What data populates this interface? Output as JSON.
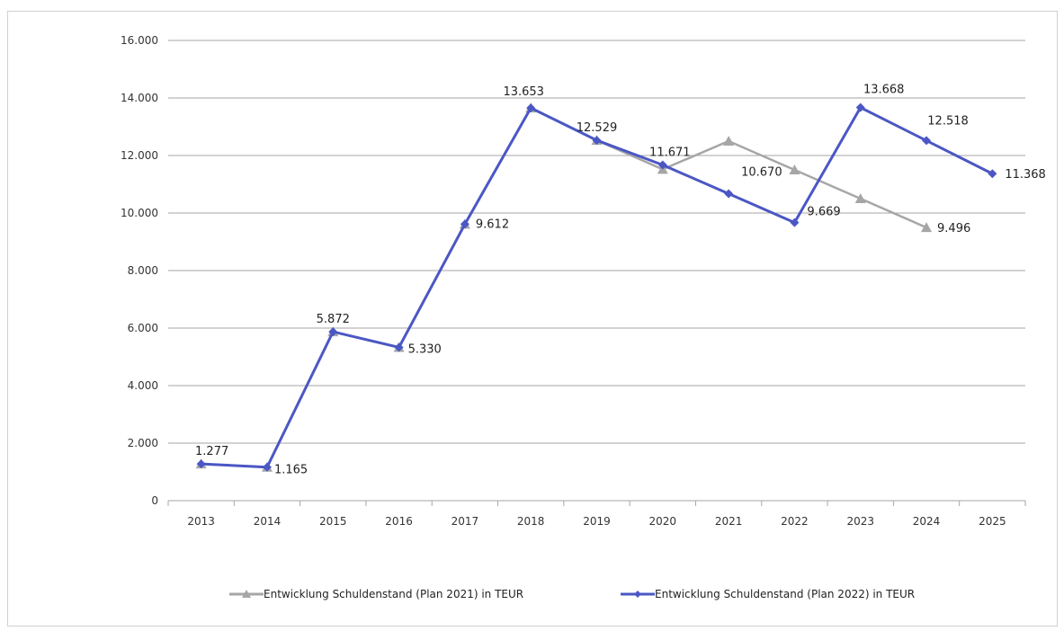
{
  "chart_data": {
    "type": "line",
    "title": "",
    "xlabel": "",
    "ylabel": "",
    "categories": [
      "2013",
      "2014",
      "2015",
      "2016",
      "2017",
      "2018",
      "2019",
      "2020",
      "2021",
      "2022",
      "2023",
      "2024",
      "2025"
    ],
    "ylim": [
      0,
      16000
    ],
    "y_ticks": [
      0,
      2000,
      4000,
      6000,
      8000,
      10000,
      12000,
      14000,
      16000
    ],
    "y_tick_labels": [
      "0",
      "2.000",
      "4.000",
      "6.000",
      "8.000",
      "10.000",
      "12.000",
      "14.000",
      "16.000"
    ],
    "grid": true,
    "legend_position": "bottom",
    "series": [
      {
        "name": "Entwicklung Schuldenstand (Plan 2021) in TEUR",
        "color": "#a6a6a6",
        "marker": "triangle",
        "values": [
          1277,
          1165,
          5872,
          5330,
          9612,
          13653,
          12529,
          11520,
          12500,
          11500,
          10500,
          9496,
          null
        ],
        "data_labels": [
          null,
          null,
          null,
          null,
          null,
          null,
          null,
          null,
          null,
          null,
          null,
          "9.496",
          null
        ]
      },
      {
        "name": "Entwicklung Schuldenstand (Plan 2022) in TEUR",
        "color": "#4b57c4",
        "marker": "diamond",
        "values": [
          1277,
          1165,
          5872,
          5330,
          9612,
          13653,
          12529,
          11671,
          10670,
          9669,
          13668,
          12518,
          11368
        ],
        "data_labels": [
          "1.277",
          "1.165",
          "5.872",
          "5.330",
          "9.612",
          "13.653",
          "12.529",
          "11.671",
          "10.670",
          "9.669",
          "13.668",
          "12.518",
          "11.368"
        ]
      }
    ]
  }
}
